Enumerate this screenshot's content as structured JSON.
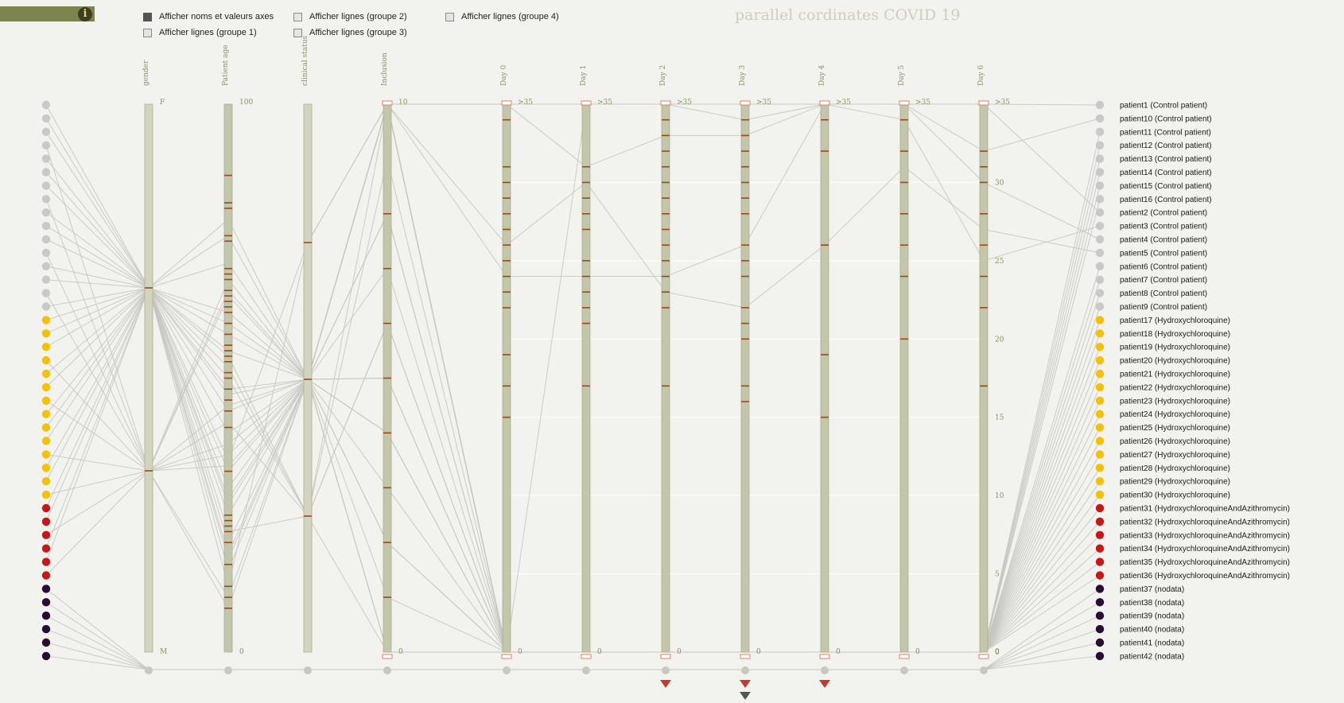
{
  "app": {
    "title": "parallel cordinates COVID 19",
    "info_label": "i"
  },
  "options": [
    {
      "label": "Afficher noms et valeurs axes",
      "checked": true
    },
    {
      "label": "Afficher lignes (groupe 1)",
      "checked": false
    },
    {
      "label": "Afficher lignes (groupe 2)",
      "checked": false
    },
    {
      "label": "Afficher lignes (groupe 3)",
      "checked": false
    },
    {
      "label": "Afficher lignes (groupe 4)",
      "checked": false
    }
  ],
  "colors": {
    "control": "#c9c9c9",
    "hydroxy": "#f5c100",
    "azithro": "#c81717",
    "nodata": "#2b0a33",
    "axis_fill": "#c3c6ab",
    "tick_mark": "#9b4a16",
    "line": "#c4c4c0",
    "brush": "#e08060",
    "marker": "#c23b2e",
    "marker_dark": "#555555"
  },
  "chart_data": {
    "type": "parallel-coordinates",
    "title": "parallel cordinates COVID 19",
    "axes": [
      {
        "name": "gender",
        "top": "F",
        "bottom": "M"
      },
      {
        "name": "Patient age",
        "top": "100",
        "bottom": "0",
        "range": [
          0,
          100
        ]
      },
      {
        "name": "clinical status",
        "top": "",
        "bottom": ""
      },
      {
        "name": "Inclusion",
        "top": "10",
        "bottom": "0",
        "range": [
          0,
          10
        ]
      },
      {
        "name": "Day 0",
        "top": ">35",
        "bottom": "0",
        "range": [
          0,
          35
        ]
      },
      {
        "name": "Day 1",
        "top": ">35",
        "bottom": "0",
        "range": [
          0,
          35
        ]
      },
      {
        "name": "Day 2",
        "top": ">35",
        "bottom": "0",
        "range": [
          0,
          35
        ]
      },
      {
        "name": "Day 3",
        "top": ">35",
        "bottom": "0",
        "range": [
          0,
          35
        ]
      },
      {
        "name": "Day 4",
        "top": ">35",
        "bottom": "0",
        "range": [
          0,
          35
        ]
      },
      {
        "name": "Day 5",
        "top": ">35",
        "bottom": "0",
        "range": [
          0,
          35
        ]
      },
      {
        "name": "Day 6",
        "top": ">35",
        "bottom": "0",
        "range": [
          0,
          35
        ]
      }
    ],
    "y_ticks": [
      "30",
      "25",
      "20",
      "15",
      "10",
      "5",
      "0"
    ],
    "y_tick_values": [
      30,
      25,
      20,
      15,
      10,
      5,
      0
    ],
    "patients": [
      {
        "label": "patient1 (Control patient)",
        "group": "control",
        "values": [
          "F",
          28,
          "b",
          10,
          35,
          35,
          35,
          35,
          35,
          35,
          35
        ]
      },
      {
        "label": "patient10 (Control patient)",
        "group": "control",
        "values": [
          "F",
          55,
          "b",
          10,
          0,
          35,
          35,
          35,
          35,
          35,
          32
        ]
      },
      {
        "label": "patient11 (Control patient)",
        "group": "control",
        "values": [
          "F",
          62,
          "b",
          10,
          0,
          0,
          0,
          0,
          0,
          0,
          0
        ]
      },
      {
        "label": "patient12 (Control patient)",
        "group": "control",
        "values": [
          "M",
          34,
          "b",
          10,
          0,
          0,
          0,
          0,
          0,
          0,
          0
        ]
      },
      {
        "label": "patient13 (Control patient)",
        "group": "control",
        "values": [
          "F",
          48,
          "b",
          10,
          0,
          0,
          0,
          0,
          0,
          0,
          0
        ]
      },
      {
        "label": "patient14 (Control patient)",
        "group": "control",
        "values": [
          "F",
          71,
          "b",
          10,
          0,
          0,
          0,
          0,
          0,
          0,
          0
        ]
      },
      {
        "label": "patient15 (Control patient)",
        "group": "control",
        "values": [
          "F",
          22,
          "c",
          10,
          0,
          0,
          0,
          0,
          0,
          0,
          0
        ]
      },
      {
        "label": "patient16 (Control patient)",
        "group": "control",
        "values": [
          "M",
          66,
          "b",
          10,
          0,
          0,
          0,
          0,
          0,
          0,
          0
        ]
      },
      {
        "label": "patient2 (Control patient)",
        "group": "control",
        "values": [
          "F",
          12,
          "a",
          10,
          35,
          35,
          35,
          34,
          35,
          35,
          35
        ]
      },
      {
        "label": "patient3 (Control patient)",
        "group": "control",
        "values": [
          "F",
          35,
          "a",
          10,
          35,
          31,
          33,
          33,
          35,
          34,
          25
        ]
      },
      {
        "label": "patient4 (Control patient)",
        "group": "control",
        "values": [
          "F",
          17,
          "b",
          10,
          24,
          24,
          24,
          26,
          35,
          35,
          30
        ]
      },
      {
        "label": "patient5 (Control patient)",
        "group": "control",
        "values": [
          "M",
          45,
          "b",
          10,
          26,
          30,
          23,
          22,
          26,
          31,
          27
        ]
      },
      {
        "label": "patient6 (Control patient)",
        "group": "control",
        "values": [
          "F",
          58,
          "b",
          10,
          0,
          0,
          0,
          0,
          0,
          0,
          0
        ]
      },
      {
        "label": "patient7 (Control patient)",
        "group": "control",
        "values": [
          "F",
          79,
          "b",
          10,
          0,
          0,
          0,
          0,
          0,
          0,
          0
        ]
      },
      {
        "label": "patient8 (Control patient)",
        "group": "control",
        "values": [
          "M",
          8,
          "b",
          10,
          0,
          0,
          0,
          0,
          0,
          0,
          0
        ]
      },
      {
        "label": "patient9 (Control patient)",
        "group": "control",
        "values": [
          "F",
          40,
          "b",
          10,
          0,
          0,
          0,
          0,
          0,
          0,
          0
        ]
      },
      {
        "label": "patient17 (Hydroxychloroquine)",
        "group": "hydroxy",
        "values": [
          "F",
          30,
          "b",
          0,
          0,
          0,
          0,
          0,
          0,
          0,
          0
        ]
      },
      {
        "label": "patient18 (Hydroxychloroquine)",
        "group": "hydroxy",
        "values": [
          "F",
          15,
          "b",
          2,
          0,
          0,
          0,
          0,
          0,
          0,
          0
        ]
      },
      {
        "label": "patient19 (Hydroxychloroquine)",
        "group": "hydroxy",
        "values": [
          "F",
          25,
          "b",
          4,
          0,
          0,
          0,
          0,
          0,
          0,
          0
        ]
      },
      {
        "label": "patient20 (Hydroxychloroquine)",
        "group": "hydroxy",
        "values": [
          "M",
          38,
          "b",
          5,
          0,
          0,
          0,
          0,
          0,
          0,
          0
        ]
      },
      {
        "label": "patient21 (Hydroxychloroquine)",
        "group": "hydroxy",
        "values": [
          "F",
          50,
          "c",
          6,
          0,
          0,
          0,
          0,
          0,
          0,
          0
        ]
      },
      {
        "label": "patient22 (Hydroxychloroquine)",
        "group": "hydroxy",
        "values": [
          "F",
          60,
          "b",
          8,
          0,
          0,
          0,
          0,
          0,
          0,
          0
        ]
      },
      {
        "label": "patient23 (Hydroxychloroquine)",
        "group": "hydroxy",
        "values": [
          "M",
          10,
          "b",
          0,
          0,
          0,
          0,
          0,
          0,
          0,
          0
        ]
      },
      {
        "label": "patient24 (Hydroxychloroquine)",
        "group": "hydroxy",
        "values": [
          "F",
          20,
          "b",
          3,
          0,
          0,
          0,
          0,
          0,
          0,
          0
        ]
      },
      {
        "label": "patient25 (Hydroxychloroquine)",
        "group": "hydroxy",
        "values": [
          "F",
          44,
          "b",
          7,
          0,
          0,
          0,
          0,
          0,
          0,
          0
        ]
      },
      {
        "label": "patient26 (Hydroxychloroquine)",
        "group": "hydroxy",
        "values": [
          "F",
          52,
          "c",
          9,
          0,
          0,
          0,
          0,
          0,
          0,
          0
        ]
      },
      {
        "label": "patient27 (Hydroxychloroquine)",
        "group": "hydroxy",
        "values": [
          "M",
          65,
          "b",
          1,
          0,
          0,
          0,
          0,
          0,
          0,
          0
        ]
      },
      {
        "label": "patient28 (Hydroxychloroquine)",
        "group": "hydroxy",
        "values": [
          "F",
          76,
          "b",
          10,
          0,
          0,
          0,
          0,
          0,
          0,
          0
        ]
      },
      {
        "label": "patient29 (Hydroxychloroquine)",
        "group": "hydroxy",
        "values": [
          "F",
          33,
          "b",
          0,
          0,
          0,
          0,
          0,
          0,
          0,
          0
        ]
      },
      {
        "label": "patient30 (Hydroxychloroquine)",
        "group": "hydroxy",
        "values": [
          "M",
          42,
          "c",
          6,
          0,
          0,
          0,
          0,
          0,
          0,
          0
        ]
      },
      {
        "label": "patient31 (HydroxychloroquineAndAzithromycin)",
        "group": "azithro",
        "values": [
          "F",
          18,
          "b",
          2,
          0,
          0,
          0,
          0,
          0,
          0,
          0
        ]
      },
      {
        "label": "patient32 (HydroxychloroquineAndAzithromycin)",
        "group": "azithro",
        "values": [
          "F",
          27,
          "b",
          4,
          0,
          0,
          0,
          0,
          0,
          0,
          0
        ]
      },
      {
        "label": "patient33 (HydroxychloroquineAndAzithromycin)",
        "group": "azithro",
        "values": [
          "M",
          36,
          "b",
          8,
          0,
          0,
          0,
          0,
          0,
          0,
          0
        ]
      },
      {
        "label": "patient34 (HydroxychloroquineAndAzithromycin)",
        "group": "azithro",
        "values": [
          "F",
          47,
          "b",
          10,
          0,
          0,
          0,
          0,
          0,
          0,
          0
        ]
      },
      {
        "label": "patient35 (HydroxychloroquineAndAzithromycin)",
        "group": "azithro",
        "values": [
          "F",
          54,
          "c",
          0,
          0,
          0,
          0,
          0,
          0,
          0,
          0
        ]
      },
      {
        "label": "patient36 (HydroxychloroquineAndAzithromycin)",
        "group": "azithro",
        "values": [
          "M",
          68,
          "b",
          5,
          0,
          0,
          0,
          0,
          0,
          0,
          0
        ]
      },
      {
        "label": "patient37 (nodata)",
        "group": "nodata",
        "values": []
      },
      {
        "label": "patient38 (nodata)",
        "group": "nodata",
        "values": []
      },
      {
        "label": "patient39 (nodata)",
        "group": "nodata",
        "values": []
      },
      {
        "label": "patient40 (nodata)",
        "group": "nodata",
        "values": []
      },
      {
        "label": "patient41 (nodata)",
        "group": "nodata",
        "values": []
      },
      {
        "label": "patient42 (nodata)",
        "group": "nodata",
        "values": []
      }
    ],
    "axis_ticks": [
      [],
      [
        87,
        82,
        81,
        76,
        75,
        70,
        69,
        68,
        66,
        65,
        64,
        63,
        62,
        60,
        58,
        56,
        55,
        54,
        53,
        51,
        50,
        48,
        46,
        44,
        41,
        33,
        25,
        24,
        23,
        22,
        20,
        16,
        12,
        10,
        8
      ],
      [],
      [
        8,
        7,
        6,
        5,
        4,
        3,
        2,
        1
      ],
      [
        34,
        31,
        30,
        29,
        28,
        27,
        26,
        25,
        24,
        23,
        22,
        19,
        17,
        15
      ],
      [
        31,
        30,
        29,
        28,
        27,
        25,
        24,
        23,
        22,
        21,
        17
      ],
      [
        34,
        33,
        32,
        31,
        30,
        29,
        28,
        27,
        26,
        25,
        24,
        23,
        22,
        17
      ],
      [
        34,
        33,
        32,
        31,
        30,
        29,
        28,
        26,
        25,
        24,
        22,
        21,
        20,
        17,
        16
      ],
      [
        34,
        32,
        26,
        19,
        15
      ],
      [
        34,
        32,
        30,
        28,
        26,
        24,
        20
      ],
      [
        32,
        31,
        30,
        28,
        26,
        24,
        22,
        17
      ]
    ],
    "bottom_markers": [
      {
        "axis": 6,
        "count": 1
      },
      {
        "axis": 7,
        "count": 3
      },
      {
        "axis": 8,
        "count": 1
      }
    ]
  }
}
